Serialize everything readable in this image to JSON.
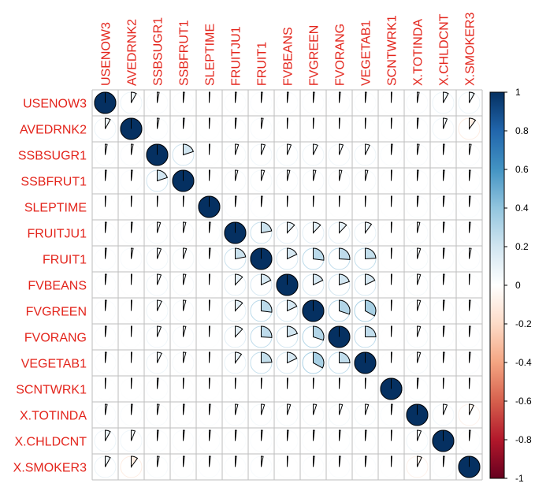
{
  "chart_data": {
    "type": "heatmap",
    "style": "correlation matrix drawn as pie glyphs (fraction of circle = |r|); grey grid; colorbar legend on the right",
    "variables": [
      "USENOW3",
      "AVEDRNK2",
      "SSBSUGR1",
      "SSBFRUT1",
      "SLEPTIME",
      "FRUITJU1",
      "FRUIT1",
      "FVBEANS",
      "FVGREEN",
      "FVORANG",
      "VEGETAB1",
      "SCNTWRK1",
      "X.TOTINDA",
      "X.CHLDCNT",
      "X.SMOKER3"
    ],
    "matrix": [
      [
        1.0,
        0.08,
        0.03,
        0.02,
        0.01,
        0.02,
        0.02,
        0.02,
        0.02,
        0.02,
        0.02,
        0.01,
        0.03,
        0.08,
        0.08
      ],
      [
        0.08,
        1.0,
        0.03,
        0.02,
        0.01,
        0.02,
        0.03,
        0.01,
        0.01,
        0.01,
        0.01,
        0.01,
        0.02,
        0.06,
        -0.1
      ],
      [
        0.03,
        0.03,
        1.0,
        0.2,
        0.01,
        0.05,
        0.06,
        0.06,
        0.07,
        0.06,
        0.07,
        0.02,
        0.03,
        0.02,
        0.03
      ],
      [
        0.02,
        0.02,
        0.2,
        1.0,
        0.01,
        0.04,
        0.05,
        0.04,
        0.04,
        0.04,
        0.04,
        0.01,
        0.02,
        0.02,
        0.02
      ],
      [
        0.01,
        0.01,
        0.01,
        0.01,
        1.0,
        0.02,
        0.02,
        0.01,
        0.01,
        0.01,
        0.01,
        0.01,
        0.02,
        0.02,
        0.02
      ],
      [
        0.02,
        0.02,
        0.05,
        0.04,
        0.02,
        1.0,
        0.22,
        0.12,
        0.12,
        0.12,
        0.1,
        0.01,
        0.04,
        0.02,
        0.02
      ],
      [
        0.02,
        0.03,
        0.06,
        0.05,
        0.02,
        0.22,
        1.0,
        0.18,
        0.27,
        0.26,
        0.24,
        0.01,
        0.05,
        0.02,
        0.03
      ],
      [
        0.02,
        0.01,
        0.06,
        0.04,
        0.01,
        0.12,
        0.18,
        1.0,
        0.18,
        0.2,
        0.18,
        0.01,
        0.05,
        0.02,
        0.01
      ],
      [
        0.02,
        0.01,
        0.07,
        0.04,
        0.01,
        0.12,
        0.27,
        0.18,
        1.0,
        0.3,
        0.33,
        0.01,
        0.05,
        0.02,
        0.02
      ],
      [
        0.02,
        0.01,
        0.06,
        0.04,
        0.01,
        0.12,
        0.26,
        0.2,
        0.3,
        1.0,
        0.25,
        0.01,
        0.05,
        0.02,
        0.02
      ],
      [
        0.02,
        0.01,
        0.07,
        0.04,
        0.01,
        0.1,
        0.24,
        0.18,
        0.33,
        0.25,
        1.0,
        0.01,
        0.05,
        0.02,
        0.02
      ],
      [
        0.01,
        0.01,
        0.02,
        0.01,
        0.01,
        0.01,
        0.01,
        0.01,
        0.01,
        0.01,
        0.01,
        1.0,
        0.02,
        0.01,
        0.01
      ],
      [
        0.03,
        0.02,
        0.03,
        0.02,
        0.02,
        0.04,
        0.05,
        0.05,
        0.05,
        0.05,
        0.05,
        0.02,
        1.0,
        0.06,
        -0.07
      ],
      [
        0.08,
        0.06,
        0.02,
        0.02,
        0.02,
        0.02,
        0.02,
        0.02,
        0.02,
        0.02,
        0.02,
        0.01,
        0.06,
        1.0,
        0.02
      ],
      [
        0.08,
        -0.1,
        0.03,
        0.02,
        0.02,
        0.02,
        0.03,
        0.01,
        0.02,
        0.02,
        0.02,
        0.01,
        -0.07,
        0.02,
        1.0
      ]
    ],
    "colorbar": {
      "ticks": [
        "1",
        "0.8",
        "0.6",
        "0.4",
        "0.2",
        "0",
        "-0.2",
        "-0.4",
        "-0.6",
        "-0.8",
        "-1"
      ],
      "range": [
        -1,
        1
      ],
      "colors": [
        "#67001F",
        "#B2182B",
        "#D6604D",
        "#F4A582",
        "#FDDBC7",
        "#FFFFFF",
        "#D1E5F0",
        "#92C5DE",
        "#4393C3",
        "#2166AC",
        "#053061"
      ]
    },
    "label_color": "#E3241B",
    "grid_color": "#BEBEBE"
  }
}
